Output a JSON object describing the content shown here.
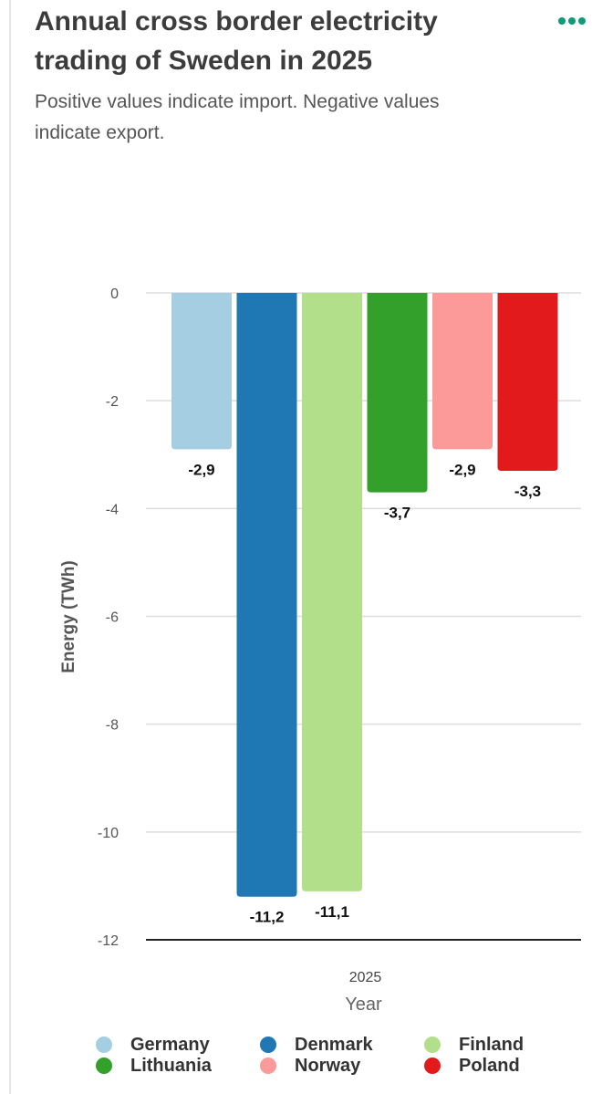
{
  "header": {
    "title": "Annual cross border electricity trading of Sweden in 2025",
    "subtitle": "Positive values indicate import. Negative values indicate export.",
    "menu_icon": "more-dots-icon"
  },
  "colors": {
    "accent": "#0f9a78",
    "grid": "#dddddd",
    "axis": "#222222"
  },
  "chart_data": {
    "type": "bar",
    "categories": [
      "2025"
    ],
    "series": [
      {
        "name": "Germany",
        "values": [
          -2.9
        ],
        "label": "-2,9",
        "color": "#a6cee3"
      },
      {
        "name": "Denmark",
        "values": [
          -11.2
        ],
        "label": "-11,2",
        "color": "#1f78b4"
      },
      {
        "name": "Finland",
        "values": [
          -11.1
        ],
        "label": "-11,1",
        "color": "#b2df8a"
      },
      {
        "name": "Lithuania",
        "values": [
          -3.7
        ],
        "label": "-3,7",
        "color": "#33a02c"
      },
      {
        "name": "Norway",
        "values": [
          -2.9
        ],
        "label": "-2,9",
        "color": "#fb9a99"
      },
      {
        "name": "Poland",
        "values": [
          -3.3
        ],
        "label": "-3,3",
        "color": "#e31a1c"
      }
    ],
    "xlabel": "Year",
    "ylabel": "Energy (TWh)",
    "ylim": [
      -12,
      0
    ],
    "yticks": [
      0,
      -2,
      -4,
      -6,
      -8,
      -10,
      -12
    ],
    "grid": true,
    "legend_position": "bottom"
  }
}
